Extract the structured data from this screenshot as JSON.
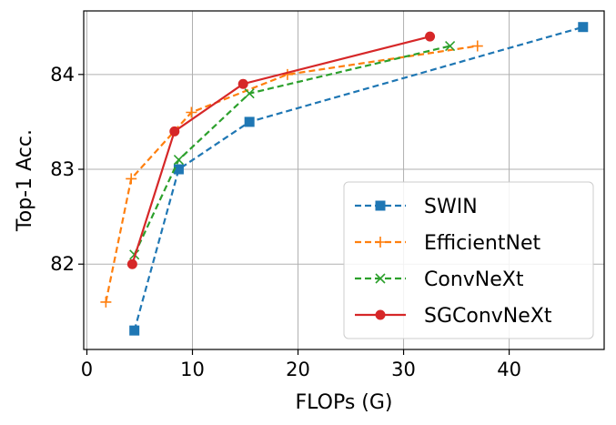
{
  "chart_data": {
    "type": "line",
    "xlabel": "FLOPs (G)",
    "ylabel": "Top-1 Acc.",
    "xlim": [
      -0.3,
      49.0
    ],
    "ylim": [
      81.1,
      84.67
    ],
    "xticks": [
      0,
      10,
      20,
      30,
      40
    ],
    "yticks": [
      82,
      83,
      84
    ],
    "grid": true,
    "legend_position": "lower-right",
    "series": [
      {
        "name": "SWIN",
        "color": "#1f77b4",
        "linestyle": "dashed",
        "marker": "square",
        "x": [
          4.5,
          8.7,
          15.4,
          47.0
        ],
        "y": [
          81.3,
          83.0,
          83.5,
          84.5
        ]
      },
      {
        "name": "EfficientNet",
        "color": "#ff7f0e",
        "linestyle": "dashed",
        "marker": "plus",
        "x": [
          1.8,
          4.2,
          9.9,
          19.0,
          37.0
        ],
        "y": [
          81.6,
          82.9,
          83.6,
          84.0,
          84.3
        ]
      },
      {
        "name": "ConvNeXt",
        "color": "#2ca02c",
        "linestyle": "dashed",
        "marker": "x",
        "x": [
          4.5,
          8.7,
          15.4,
          34.4
        ],
        "y": [
          82.1,
          83.1,
          83.8,
          84.3
        ]
      },
      {
        "name": "SGConvNeXt",
        "color": "#d62728",
        "linestyle": "solid",
        "marker": "circle",
        "x": [
          4.3,
          8.3,
          14.8,
          32.5
        ],
        "y": [
          82.0,
          83.4,
          83.9,
          84.4
        ]
      }
    ]
  }
}
